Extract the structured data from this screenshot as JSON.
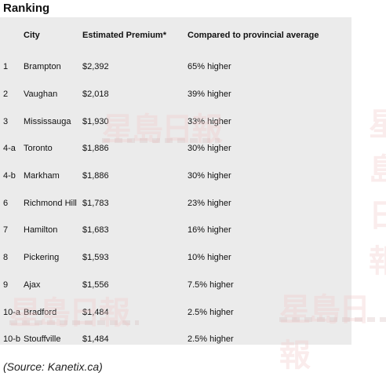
{
  "heading": "Ranking",
  "table": {
    "headers": [
      "",
      "City",
      "Estimated Premium*",
      "Compared to provincial average"
    ],
    "rows": [
      [
        "1",
        "Brampton",
        "$2,392",
        "65% higher"
      ],
      [
        "2",
        "Vaughan",
        "$2,018",
        "39% higher"
      ],
      [
        "3",
        "Mississauga",
        "$1,930",
        "33% higher"
      ],
      [
        "4-a",
        "Toronto",
        "$1,886",
        "30% higher"
      ],
      [
        "4-b",
        "Markham",
        "$1,886",
        "30% higher"
      ],
      [
        "6",
        "Richmond Hill",
        "$1,783",
        "23% higher"
      ],
      [
        "7",
        "Hamilton",
        "$1,683",
        "16% higher"
      ],
      [
        "8",
        "Pickering",
        "$1,593",
        "10% higher"
      ],
      [
        "9",
        "Ajax",
        "$1,556",
        "7.5% higher"
      ],
      [
        "10-a",
        "Bradford",
        "$1,484",
        "2.5% higher"
      ],
      [
        "10-b",
        "Stouffville",
        "$1,484",
        "2.5% higher"
      ]
    ]
  },
  "source": "(Source: Kanetix.ca)",
  "watermark": "星島日報"
}
